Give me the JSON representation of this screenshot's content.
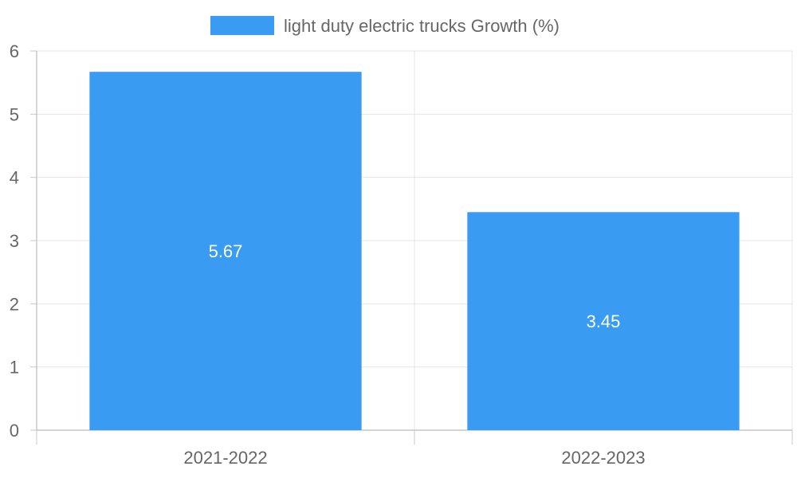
{
  "chart_data": {
    "type": "bar",
    "categories": [
      "2021-2022",
      "2022-2023"
    ],
    "series": [
      {
        "name": "light duty electric trucks Growth (%)",
        "values": [
          5.67,
          3.45
        ],
        "color": "#399BF1"
      }
    ],
    "data_labels": [
      "5.67",
      "3.45"
    ],
    "y_ticks": [
      0,
      1,
      2,
      3,
      4,
      5,
      6
    ],
    "ylim": [
      0,
      6
    ],
    "grid": true,
    "legend_position": "top-center",
    "title": "",
    "xlabel": "",
    "ylabel": ""
  }
}
